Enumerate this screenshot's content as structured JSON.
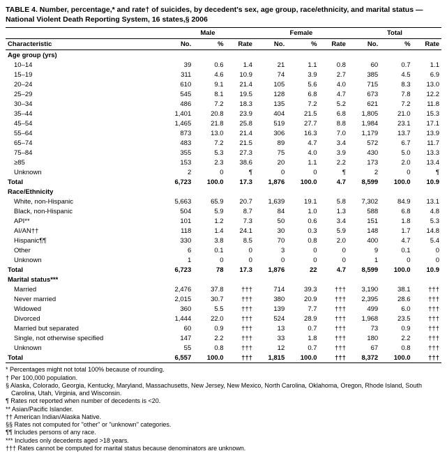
{
  "title": "TABLE 4. Number, percentage,* and rate† of suicides, by decedent's sex, age group, race/ethnicity, and marital status — National Violent Death Reporting System, 16 states,§ 2006",
  "headers": {
    "characteristic": "Characteristic",
    "male": "Male",
    "female": "Female",
    "total": "Total",
    "no": "No.",
    "pct": "%",
    "rate": "Rate"
  },
  "sections": [
    {
      "label": "Age group (yrs)",
      "rows": [
        {
          "label": "10–14",
          "m_no": "39",
          "m_pct": "0.6",
          "m_rate": "1.4",
          "f_no": "21",
          "f_pct": "1.1",
          "f_rate": "0.8",
          "t_no": "60",
          "t_pct": "0.7",
          "t_rate": "1.1"
        },
        {
          "label": "15–19",
          "m_no": "311",
          "m_pct": "4.6",
          "m_rate": "10.9",
          "f_no": "74",
          "f_pct": "3.9",
          "f_rate": "2.7",
          "t_no": "385",
          "t_pct": "4.5",
          "t_rate": "6.9"
        },
        {
          "label": "20–24",
          "m_no": "610",
          "m_pct": "9.1",
          "m_rate": "21.4",
          "f_no": "105",
          "f_pct": "5.6",
          "f_rate": "4.0",
          "t_no": "715",
          "t_pct": "8.3",
          "t_rate": "13.0"
        },
        {
          "label": "25–29",
          "m_no": "545",
          "m_pct": "8.1",
          "m_rate": "19.5",
          "f_no": "128",
          "f_pct": "6.8",
          "f_rate": "4.7",
          "t_no": "673",
          "t_pct": "7.8",
          "t_rate": "12.2"
        },
        {
          "label": "30–34",
          "m_no": "486",
          "m_pct": "7.2",
          "m_rate": "18.3",
          "f_no": "135",
          "f_pct": "7.2",
          "f_rate": "5.2",
          "t_no": "621",
          "t_pct": "7.2",
          "t_rate": "11.8"
        },
        {
          "label": "35–44",
          "m_no": "1,401",
          "m_pct": "20.8",
          "m_rate": "23.9",
          "f_no": "404",
          "f_pct": "21.5",
          "f_rate": "6.8",
          "t_no": "1,805",
          "t_pct": "21.0",
          "t_rate": "15.3"
        },
        {
          "label": "45–54",
          "m_no": "1,465",
          "m_pct": "21.8",
          "m_rate": "25.8",
          "f_no": "519",
          "f_pct": "27.7",
          "f_rate": "8.8",
          "t_no": "1,984",
          "t_pct": "23.1",
          "t_rate": "17.1"
        },
        {
          "label": "55–64",
          "m_no": "873",
          "m_pct": "13.0",
          "m_rate": "21.4",
          "f_no": "306",
          "f_pct": "16.3",
          "f_rate": "7.0",
          "t_no": "1,179",
          "t_pct": "13.7",
          "t_rate": "13.9"
        },
        {
          "label": "65–74",
          "m_no": "483",
          "m_pct": "7.2",
          "m_rate": "21.5",
          "f_no": "89",
          "f_pct": "4.7",
          "f_rate": "3.4",
          "t_no": "572",
          "t_pct": "6.7",
          "t_rate": "11.7"
        },
        {
          "label": "75–84",
          "m_no": "355",
          "m_pct": "5.3",
          "m_rate": "27.3",
          "f_no": "75",
          "f_pct": "4.0",
          "f_rate": "3.9",
          "t_no": "430",
          "t_pct": "5.0",
          "t_rate": "13.3"
        },
        {
          "label": "≥85",
          "m_no": "153",
          "m_pct": "2.3",
          "m_rate": "38.6",
          "f_no": "20",
          "f_pct": "1.1",
          "f_rate": "2.2",
          "t_no": "173",
          "t_pct": "2.0",
          "t_rate": "13.4"
        },
        {
          "label": "Unknown",
          "m_no": "2",
          "m_pct": "0",
          "m_rate": "¶",
          "f_no": "0",
          "f_pct": "0",
          "f_rate": "¶",
          "t_no": "2",
          "t_pct": "0",
          "t_rate": "¶"
        }
      ],
      "total": {
        "label": "Total",
        "m_no": "6,723",
        "m_pct": "100.0",
        "m_rate": "17.3",
        "f_no": "1,876",
        "f_pct": "100.0",
        "f_rate": "4.7",
        "t_no": "8,599",
        "t_pct": "100.0",
        "t_rate": "10.9"
      }
    },
    {
      "label": "Race/Ethnicity",
      "rows": [
        {
          "label": "White, non-Hispanic",
          "m_no": "5,663",
          "m_pct": "65.9",
          "m_rate": "20.7",
          "f_no": "1,639",
          "f_pct": "19.1",
          "f_rate": "5.8",
          "t_no": "7,302",
          "t_pct": "84.9",
          "t_rate": "13.1"
        },
        {
          "label": "Black, non-Hispanic",
          "m_no": "504",
          "m_pct": "5.9",
          "m_rate": "8.7",
          "f_no": "84",
          "f_pct": "1.0",
          "f_rate": "1.3",
          "t_no": "588",
          "t_pct": "6.8",
          "t_rate": "4.8"
        },
        {
          "label": "API**",
          "m_no": "101",
          "m_pct": "1.2",
          "m_rate": "7.3",
          "f_no": "50",
          "f_pct": "0.6",
          "f_rate": "3.4",
          "t_no": "151",
          "t_pct": "1.8",
          "t_rate": "5.3"
        },
        {
          "label": "AI/AN††",
          "m_no": "118",
          "m_pct": "1.4",
          "m_rate": "24.1",
          "f_no": "30",
          "f_pct": "0.3",
          "f_rate": "5.9",
          "t_no": "148",
          "t_pct": "1.7",
          "t_rate": "14.8"
        },
        {
          "label": "Hispanic¶¶",
          "m_no": "330",
          "m_pct": "3.8",
          "m_rate": "8.5",
          "f_no": "70",
          "f_pct": "0.8",
          "f_rate": "2.0",
          "t_no": "400",
          "t_pct": "4.7",
          "t_rate": "5.4"
        },
        {
          "label": "Other",
          "m_no": "6",
          "m_pct": "0.1",
          "m_rate": "0",
          "f_no": "3",
          "f_pct": "0",
          "f_rate": "0",
          "t_no": "9",
          "t_pct": "0.1",
          "t_rate": "0"
        },
        {
          "label": "Unknown",
          "m_no": "1",
          "m_pct": "0",
          "m_rate": "0",
          "f_no": "0",
          "f_pct": "0",
          "f_rate": "0",
          "t_no": "1",
          "t_pct": "0",
          "t_rate": "0"
        }
      ],
      "total": {
        "label": "Total",
        "m_no": "6,723",
        "m_pct": "78",
        "m_rate": "17.3",
        "f_no": "1,876",
        "f_pct": "22",
        "f_rate": "4.7",
        "t_no": "8,599",
        "t_pct": "100.0",
        "t_rate": "10.9"
      }
    },
    {
      "label": "Marital status***",
      "rows": [
        {
          "label": "Married",
          "m_no": "2,476",
          "m_pct": "37.8",
          "m_rate": "†††",
          "f_no": "714",
          "f_pct": "39.3",
          "f_rate": "†††",
          "t_no": "3,190",
          "t_pct": "38.1",
          "t_rate": "†††"
        },
        {
          "label": "Never married",
          "m_no": "2,015",
          "m_pct": "30.7",
          "m_rate": "†††",
          "f_no": "380",
          "f_pct": "20.9",
          "f_rate": "†††",
          "t_no": "2,395",
          "t_pct": "28.6",
          "t_rate": "†††"
        },
        {
          "label": "Widowed",
          "m_no": "360",
          "m_pct": "5.5",
          "m_rate": "†††",
          "f_no": "139",
          "f_pct": "7.7",
          "f_rate": "†††",
          "t_no": "499",
          "t_pct": "6.0",
          "t_rate": "†††"
        },
        {
          "label": "Divorced",
          "m_no": "1,444",
          "m_pct": "22.0",
          "m_rate": "†††",
          "f_no": "524",
          "f_pct": "28.9",
          "f_rate": "†††",
          "t_no": "1,968",
          "t_pct": "23.5",
          "t_rate": "†††"
        },
        {
          "label": "Married but separated",
          "m_no": "60",
          "m_pct": "0.9",
          "m_rate": "†††",
          "f_no": "13",
          "f_pct": "0.7",
          "f_rate": "†††",
          "t_no": "73",
          "t_pct": "0.9",
          "t_rate": "†††"
        },
        {
          "label": "Single, not otherwise specified",
          "m_no": "147",
          "m_pct": "2.2",
          "m_rate": "†††",
          "f_no": "33",
          "f_pct": "1.8",
          "f_rate": "†††",
          "t_no": "180",
          "t_pct": "2.2",
          "t_rate": "†††"
        },
        {
          "label": "Unknown",
          "m_no": "55",
          "m_pct": "0.8",
          "m_rate": "†††",
          "f_no": "12",
          "f_pct": "0.7",
          "f_rate": "†††",
          "t_no": "67",
          "t_pct": "0.8",
          "t_rate": "†††"
        }
      ],
      "total": {
        "label": "Total",
        "m_no": "6,557",
        "m_pct": "100.0",
        "m_rate": "†††",
        "f_no": "1,815",
        "f_pct": "100.0",
        "f_rate": "†††",
        "t_no": "8,372",
        "t_pct": "100.0",
        "t_rate": "†††"
      }
    }
  ],
  "footnotes": [
    "* Percentages might not total 100% because of rounding.",
    "† Per 100,000 population.",
    "§ Alaska, Colorado, Georgia, Kentucky, Maryland, Massachusetts, New Jersey, New Mexico, North Carolina, Oklahoma, Oregon, Rhode Island, South Carolina, Utah, Virginia, and Wisconsin.",
    "¶ Rates not reported when number of decedents is <20.",
    "** Asian/Pacific Islander.",
    "†† American Indian/Alaska Native.",
    "§§ Rates not computed for \"other\" or \"unknown\" categories.",
    "¶¶ Includes persons of any race.",
    "*** Includes only decedents aged >18 years.",
    "††† Rates cannot be computed for marital status because denominators are unknown."
  ]
}
